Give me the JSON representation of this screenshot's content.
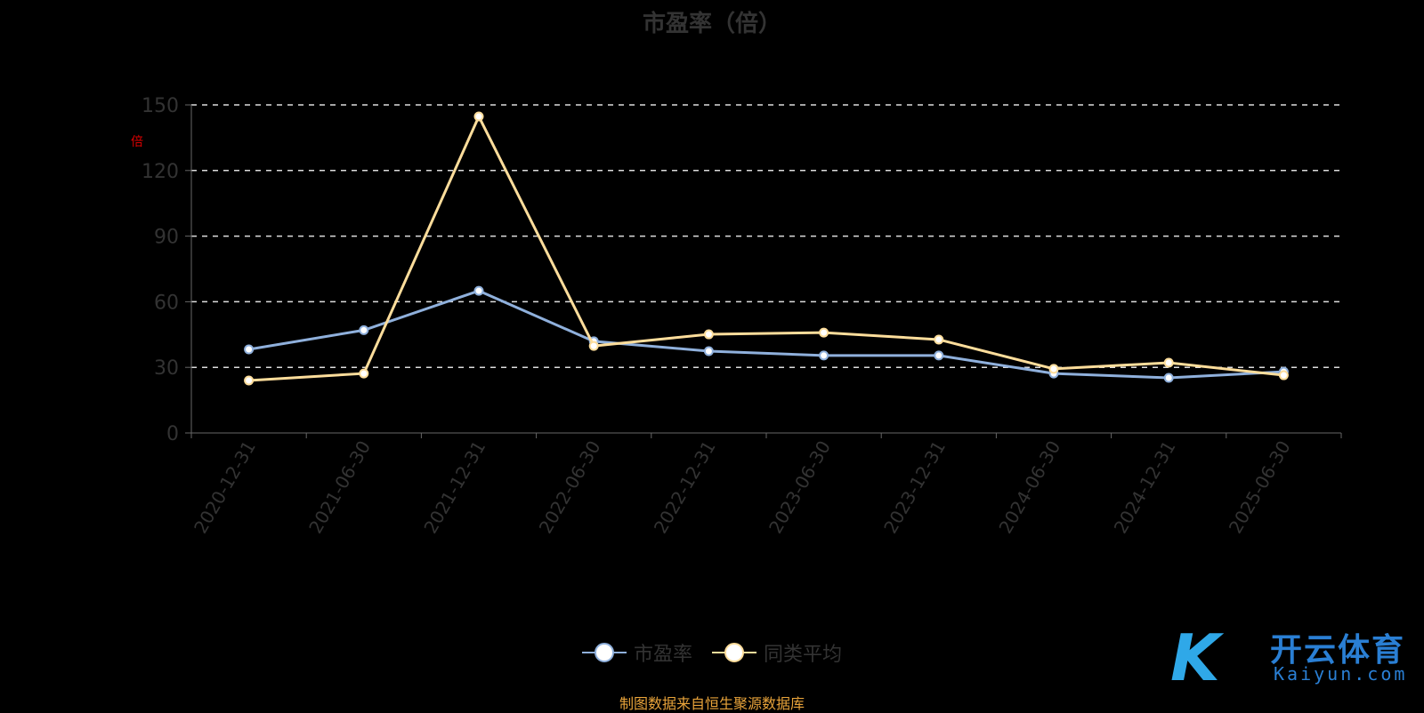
{
  "chart_data": {
    "type": "line",
    "title": "市盈率（倍）",
    "ylabel": "倍",
    "xlabel": "",
    "ylim": [
      0,
      150
    ],
    "yticks": [
      0,
      30,
      60,
      90,
      120,
      150
    ],
    "grid": true,
    "legend_position": "bottom",
    "categories": [
      "2020-12-31",
      "2021-06-30",
      "2021-12-31",
      "2022-06-30",
      "2022-12-31",
      "2023-06-30",
      "2023-12-31",
      "2024-06-30",
      "2024-12-31",
      "2025-06-30"
    ],
    "series": [
      {
        "name": "市盈率",
        "color": "#8fb0dc",
        "values": [
          38.2,
          47.0,
          65.0,
          41.9,
          37.4,
          35.4,
          35.4,
          27.2,
          25.2,
          28.0
        ]
      },
      {
        "name": "同类平均",
        "color": "#fddd9b",
        "values": [
          24.0,
          27.2,
          144.7,
          39.8,
          45.1,
          45.9,
          42.7,
          29.3,
          32.1,
          26.4
        ]
      }
    ]
  },
  "source": "制图数据来自恒生聚源数据库",
  "logo": {
    "cn": "开云体育",
    "en": "Kaiyun.com",
    "k": "K"
  }
}
